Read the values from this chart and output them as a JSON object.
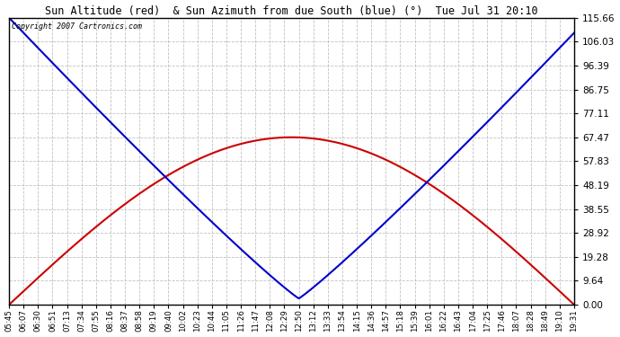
{
  "title": "Sun Altitude (red)  & Sun Azimuth from due South (blue) (°)  Tue Jul 31 20:10",
  "copyright": "Copyright 2007 Cartronics.com",
  "yticks": [
    0.0,
    9.64,
    19.28,
    28.92,
    38.55,
    48.19,
    57.83,
    67.47,
    77.11,
    86.75,
    96.39,
    106.03,
    115.66
  ],
  "ymax": 115.66,
  "ymin": 0.0,
  "x_labels": [
    "05:45",
    "06:07",
    "06:30",
    "06:51",
    "07:13",
    "07:34",
    "07:55",
    "08:16",
    "08:37",
    "08:58",
    "09:19",
    "09:40",
    "10:02",
    "10:23",
    "10:44",
    "11:05",
    "11:26",
    "11:47",
    "12:08",
    "12:29",
    "12:50",
    "13:12",
    "13:33",
    "13:54",
    "14:15",
    "14:36",
    "14:57",
    "15:18",
    "15:39",
    "16:01",
    "16:22",
    "16:43",
    "17:04",
    "17:25",
    "17:46",
    "18:07",
    "18:28",
    "18:49",
    "19:10",
    "19:31"
  ],
  "altitude_color": "#cc0000",
  "azimuth_color": "#0000cc",
  "bg_color": "#ffffff",
  "grid_color": "#bbbbbb",
  "title_color": "#000000",
  "noon_idx": 19.5,
  "peak_alt": 67.47,
  "az_max": 115.66,
  "az_min_val": 2.5,
  "az_noon_idx": 20.0
}
